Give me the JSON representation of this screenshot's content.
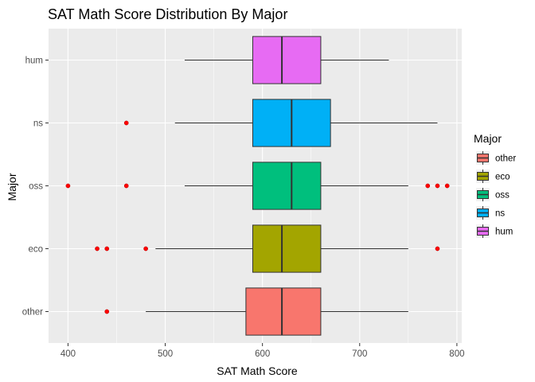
{
  "chart_data": {
    "type": "boxplot",
    "orientation": "horizontal",
    "title": "SAT Math Score Distribution By Major",
    "xlabel": "SAT Math Score",
    "ylabel": "Major",
    "xlim": [
      380,
      805
    ],
    "x_ticks": [
      400,
      500,
      600,
      700,
      800
    ],
    "grid": true,
    "legend": {
      "title": "Major",
      "placement": "right",
      "entries": [
        "other",
        "eco",
        "oss",
        "ns",
        "hum"
      ]
    },
    "categories": [
      "other",
      "eco",
      "oss",
      "ns",
      "hum"
    ],
    "colors": {
      "other": "#F8766D",
      "eco": "#A3A500",
      "oss": "#00BF7D",
      "ns": "#00B0F6",
      "hum": "#E76BF3"
    },
    "boxes": [
      {
        "category": "other",
        "whisker_low": 480,
        "q1": 583,
        "median": 620,
        "q3": 660,
        "whisker_high": 750,
        "outliers": [
          440
        ]
      },
      {
        "category": "eco",
        "whisker_low": 490,
        "q1": 590,
        "median": 620,
        "q3": 660,
        "whisker_high": 750,
        "outliers": [
          430,
          440,
          480,
          780
        ]
      },
      {
        "category": "oss",
        "whisker_low": 520,
        "q1": 590,
        "median": 630,
        "q3": 660,
        "whisker_high": 750,
        "outliers": [
          400,
          460,
          770,
          780,
          790
        ]
      },
      {
        "category": "ns",
        "whisker_low": 510,
        "q1": 590,
        "median": 630,
        "q3": 670,
        "whisker_high": 780,
        "outliers": [
          460
        ]
      },
      {
        "category": "hum",
        "whisker_low": 520,
        "q1": 590,
        "median": 620,
        "q3": 660,
        "whisker_high": 730,
        "outliers": []
      }
    ],
    "outlier_color": "#FF0000",
    "panel_background": "#EBEBEB",
    "grid_color": "#FFFFFF"
  }
}
